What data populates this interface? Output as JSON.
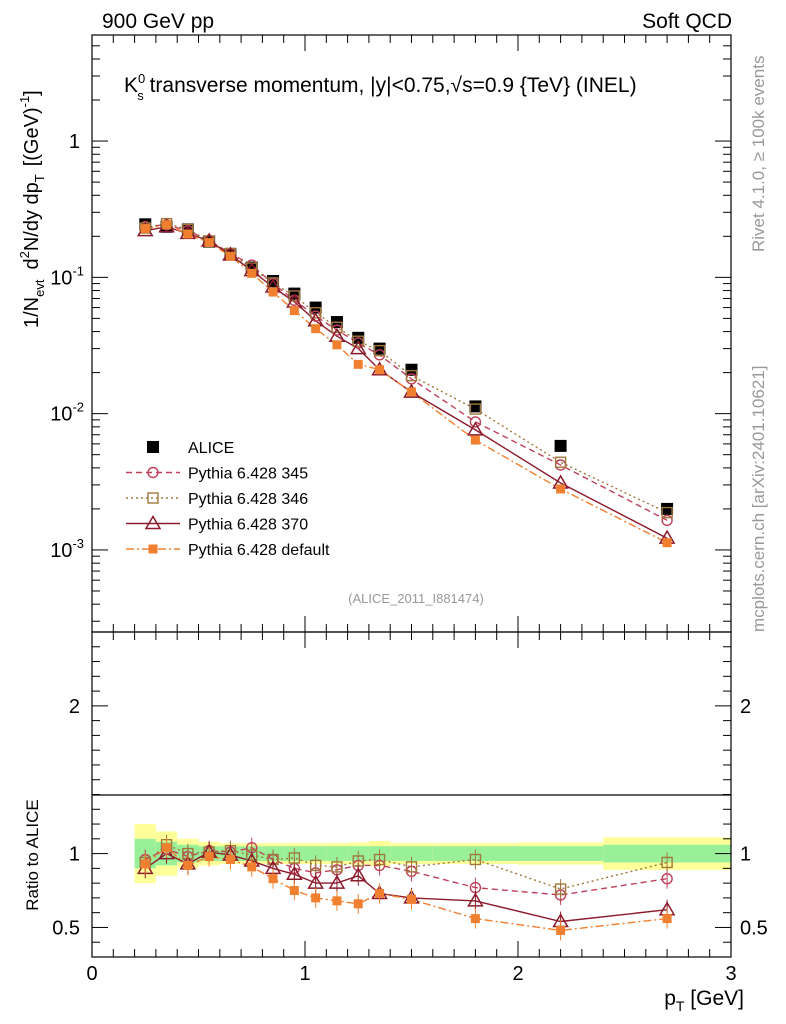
{
  "header": {
    "left": "900 GeV pp",
    "right": "Soft QCD"
  },
  "side_text": {
    "rivet": "Rivet 4.1.0, ≥ 100k events",
    "mcplots": "mcplots.cern.ch [arXiv:2401.10621]"
  },
  "chart_data": [
    {
      "type": "line",
      "panel": "main",
      "title": "K_s^0 transverse momentum, |y|<0.75,√s=0.9 {TeV} (INEL)",
      "title_parts": {
        "k": "K",
        "sub": "s",
        "sup": "0",
        "mid": " transverse momentum, |y|<0.75,",
        "sqrt": "√",
        "end": "s=0.9 {TeV} (INEL)"
      },
      "ylabel": "1/N_evt d²N/dy dp_T [(GeV)⁻¹]",
      "ylabel_parts": {
        "a": "1/N",
        "a_sub": "evt",
        "b": "d",
        "b_sup": "2",
        "c": "N/dy dp",
        "c_sub": "T",
        "d": "[(GeV)",
        "d_sup": "-1",
        "e": "]"
      },
      "yscale": "log",
      "ylim": [
        0.00025,
        6
      ],
      "xlim": [
        0,
        3
      ],
      "y_ticks": [
        {
          "value": 1,
          "label": "1"
        },
        {
          "value": 0.1,
          "label": "10",
          "exp": "-1"
        },
        {
          "value": 0.01,
          "label": "10",
          "exp": "-2"
        },
        {
          "value": 0.001,
          "label": "10",
          "exp": "-3"
        }
      ],
      "x": [
        0.25,
        0.35,
        0.45,
        0.55,
        0.65,
        0.75,
        0.85,
        0.95,
        1.05,
        1.15,
        1.25,
        1.35,
        1.5,
        1.8,
        2.2,
        2.7
      ],
      "series": [
        {
          "name": "ALICE",
          "color": "#000000",
          "marker": "filled-square",
          "values": [
            0.245,
            0.235,
            0.225,
            0.183,
            0.148,
            0.118,
            0.094,
            0.076,
            0.06,
            0.047,
            0.036,
            0.03,
            0.021,
            0.0113,
            0.0058,
            0.002
          ]
        },
        {
          "name": "Pythia 6.428 345",
          "color": "#c0405a",
          "marker": "open-circle",
          "line": "dashed",
          "values": [
            0.236,
            0.243,
            0.22,
            0.187,
            0.15,
            0.123,
            0.09,
            0.068,
            0.052,
            0.041,
            0.033,
            0.027,
            0.018,
            0.0087,
            0.0042,
            0.00165
          ]
        },
        {
          "name": "Pythia 6.428 346",
          "color": "#a0783c",
          "marker": "open-square",
          "line": "dotted",
          "values": [
            0.23,
            0.248,
            0.225,
            0.185,
            0.15,
            0.117,
            0.091,
            0.073,
            0.055,
            0.043,
            0.034,
            0.029,
            0.019,
            0.0108,
            0.0044,
            0.00188
          ]
        },
        {
          "name": "Pythia 6.428 370",
          "color": "#8b1a2b",
          "marker": "open-triangle",
          "line": "solid",
          "values": [
            0.22,
            0.235,
            0.21,
            0.185,
            0.146,
            0.112,
            0.085,
            0.066,
            0.048,
            0.037,
            0.03,
            0.021,
            0.0144,
            0.0076,
            0.0031,
            0.00122
          ]
        },
        {
          "name": "Pythia 6.428 default",
          "color": "#f08030",
          "marker": "filled-small-square",
          "line": "dashdot",
          "values": [
            0.228,
            0.243,
            0.208,
            0.18,
            0.143,
            0.107,
            0.078,
            0.057,
            0.042,
            0.032,
            0.023,
            0.021,
            0.0144,
            0.0064,
            0.0028,
            0.00113
          ]
        }
      ],
      "legend_placement": "lower-left",
      "annotation": "(ALICE_2011_I881474)"
    },
    {
      "type": "line",
      "panel": "ratio",
      "ylabel": "Ratio to ALICE",
      "xlabel": "p_T [GeV]",
      "xlabel_parts": {
        "p": "p",
        "sub": "T",
        "rest": " [GeV]"
      },
      "ylim": [
        0.3,
        2.5
      ],
      "xlim": [
        0,
        3
      ],
      "y_ticks": [
        {
          "value": 2,
          "label": "2"
        },
        {
          "value": 1,
          "label": "1"
        },
        {
          "value": 0.5,
          "label": "0.5"
        }
      ],
      "x_ticks": [
        {
          "value": 0,
          "label": "0"
        },
        {
          "value": 1,
          "label": "1"
        },
        {
          "value": 2,
          "label": "2"
        },
        {
          "value": 3,
          "label": "3"
        }
      ],
      "uncertainty_bands": [
        {
          "x0": 0.2,
          "x1": 0.3,
          "stat": 0.1,
          "total": 0.2
        },
        {
          "x0": 0.3,
          "x1": 0.4,
          "stat": 0.08,
          "total": 0.15
        },
        {
          "x0": 0.4,
          "x1": 0.5,
          "stat": 0.06,
          "total": 0.1
        },
        {
          "x0": 0.5,
          "x1": 0.6,
          "stat": 0.05,
          "total": 0.08
        },
        {
          "x0": 0.6,
          "x1": 0.7,
          "stat": 0.05,
          "total": 0.07
        },
        {
          "x0": 0.7,
          "x1": 0.8,
          "stat": 0.05,
          "total": 0.07
        },
        {
          "x0": 0.8,
          "x1": 0.9,
          "stat": 0.05,
          "total": 0.07
        },
        {
          "x0": 0.9,
          "x1": 1.0,
          "stat": 0.05,
          "total": 0.07
        },
        {
          "x0": 1.0,
          "x1": 1.1,
          "stat": 0.05,
          "total": 0.07
        },
        {
          "x0": 1.1,
          "x1": 1.2,
          "stat": 0.05,
          "total": 0.07
        },
        {
          "x0": 1.2,
          "x1": 1.3,
          "stat": 0.05,
          "total": 0.075
        },
        {
          "x0": 1.3,
          "x1": 1.4,
          "stat": 0.05,
          "total": 0.085
        },
        {
          "x0": 1.4,
          "x1": 1.6,
          "stat": 0.05,
          "total": 0.07
        },
        {
          "x0": 1.6,
          "x1": 2.0,
          "stat": 0.05,
          "total": 0.07
        },
        {
          "x0": 2.0,
          "x1": 2.4,
          "stat": 0.05,
          "total": 0.075
        },
        {
          "x0": 2.4,
          "x1": 3.0,
          "stat": 0.06,
          "total": 0.11
        }
      ],
      "band_colors": {
        "stat": "#99f099",
        "total": "#ffff99"
      },
      "series": [
        {
          "name": "Pythia 6.428 345",
          "color": "#c0405a",
          "marker": "open-circle",
          "line": "dashed",
          "values": [
            0.96,
            1.03,
            0.98,
            1.02,
            1.01,
            1.04,
            0.96,
            0.9,
            0.87,
            0.89,
            0.92,
            0.92,
            0.88,
            0.77,
            0.72,
            0.83
          ]
        },
        {
          "name": "Pythia 6.428 346",
          "color": "#a0783c",
          "marker": "open-square",
          "line": "dotted",
          "values": [
            0.94,
            1.06,
            1.0,
            1.01,
            1.02,
            0.99,
            0.96,
            0.97,
            0.92,
            0.91,
            0.95,
            0.96,
            0.91,
            0.96,
            0.76,
            0.94
          ]
        },
        {
          "name": "Pythia 6.428 370",
          "color": "#8b1a2b",
          "marker": "open-triangle",
          "line": "solid",
          "values": [
            0.9,
            1.0,
            0.93,
            1.01,
            0.99,
            0.95,
            0.9,
            0.86,
            0.8,
            0.8,
            0.85,
            0.73,
            0.7,
            0.68,
            0.54,
            0.62
          ]
        },
        {
          "name": "Pythia 6.428 default",
          "color": "#f08030",
          "marker": "filled-small-square",
          "line": "dashdot",
          "values": [
            0.93,
            1.04,
            0.92,
            0.98,
            0.96,
            0.91,
            0.83,
            0.75,
            0.7,
            0.68,
            0.66,
            0.73,
            0.69,
            0.56,
            0.48,
            0.56
          ]
        }
      ]
    }
  ]
}
